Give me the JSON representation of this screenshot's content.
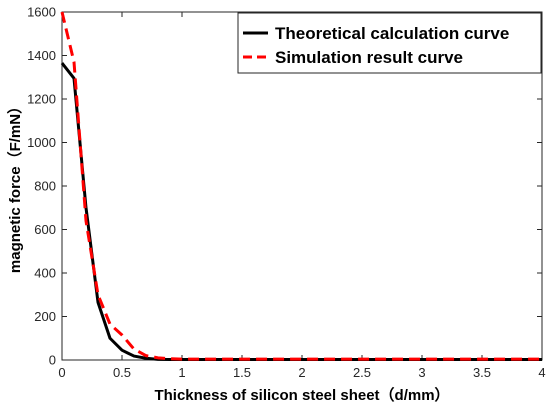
{
  "chart_data": {
    "type": "line",
    "title": "",
    "xlabel": "Thickness of silicon steel sheet（d/mm）",
    "ylabel": "magnetic force（F/mN）",
    "xlim": [
      0,
      4
    ],
    "ylim": [
      0,
      1600
    ],
    "xticks": [
      "0",
      "0.5",
      "1",
      "1.5",
      "2",
      "2.5",
      "3",
      "3.5",
      "4"
    ],
    "yticks": [
      "0",
      "200",
      "400",
      "600",
      "800",
      "1000",
      "1200",
      "1400",
      "1600"
    ],
    "grid": false,
    "legend_position": "top-right",
    "series": [
      {
        "name": "Theoretical calculation curve",
        "color": "#000000",
        "style": "solid",
        "x": [
          0,
          0.1,
          0.2,
          0.3,
          0.4,
          0.5,
          0.6,
          0.7,
          0.8,
          0.9,
          1.0,
          1.5,
          2.0,
          2.5,
          3.0,
          3.5,
          4.0
        ],
        "y": [
          1365,
          1295,
          700,
          265,
          100,
          45,
          18,
          8,
          3,
          2,
          2,
          2,
          2,
          2,
          2,
          2,
          2
        ]
      },
      {
        "name": "Simulation result curve",
        "color": "#ff0000",
        "style": "dashed",
        "x": [
          0,
          0.1,
          0.2,
          0.3,
          0.4,
          0.5,
          0.6,
          0.7,
          0.8,
          0.9,
          1.0,
          1.5,
          2.0,
          2.5,
          3.0,
          3.5,
          4.0
        ],
        "y": [
          1600,
          1370,
          640,
          300,
          165,
          115,
          50,
          20,
          10,
          6,
          4,
          4,
          4,
          4,
          4,
          4,
          4
        ]
      }
    ]
  }
}
